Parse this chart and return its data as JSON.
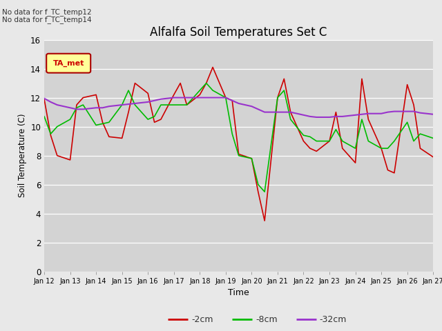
{
  "title": "Alfalfa Soil Temperatures Set C",
  "xlabel": "Time",
  "ylabel": "Soil Temperature (C)",
  "ylim": [
    0,
    16
  ],
  "yticks": [
    0,
    2,
    4,
    6,
    8,
    10,
    12,
    14,
    16
  ],
  "xtick_labels": [
    "Jan 12",
    "Jan 13",
    "Jan 14",
    "Jan 15",
    "Jan 16",
    "Jan 17",
    "Jan 18",
    "Jan 19",
    "Jan 20",
    "Jan 21",
    "Jan 22",
    "Jan 23",
    "Jan 24",
    "Jan 25",
    "Jan 26",
    "Jan 27"
  ],
  "annotations": [
    "No data for f_TC_temp12",
    "No data for f_TC_temp14"
  ],
  "legend_label_box": "TA_met",
  "fig_facecolor": "#e8e8e8",
  "ax_facecolor": "#d3d3d3",
  "series": {
    "red_2cm": {
      "label": "-2cm",
      "color": "#cc0000",
      "x": [
        0,
        0.25,
        0.5,
        1.0,
        1.25,
        1.5,
        2.0,
        2.25,
        2.5,
        3.0,
        3.25,
        3.5,
        4.0,
        4.25,
        4.5,
        5.0,
        5.25,
        5.5,
        6.0,
        6.25,
        6.5,
        7.0,
        7.25,
        7.5,
        8.0,
        8.25,
        8.5,
        9.0,
        9.25,
        9.5,
        10.0,
        10.25,
        10.5,
        11.0,
        11.25,
        11.5,
        12.0,
        12.25,
        12.5,
        13.0,
        13.25,
        13.5,
        14.0,
        14.25,
        14.5,
        15.0
      ],
      "y": [
        11.9,
        9.4,
        8.0,
        7.7,
        11.5,
        12.0,
        12.2,
        10.3,
        9.3,
        9.2,
        11.0,
        13.0,
        12.3,
        10.3,
        10.5,
        12.2,
        13.0,
        11.5,
        12.2,
        13.0,
        14.1,
        12.0,
        11.8,
        8.1,
        7.8,
        5.5,
        3.5,
        12.0,
        13.3,
        11.0,
        9.0,
        8.5,
        8.3,
        9.0,
        11.0,
        8.5,
        7.5,
        13.3,
        10.5,
        8.5,
        7.0,
        6.8,
        12.9,
        11.5,
        8.5,
        7.9
      ]
    },
    "green_8cm": {
      "label": "-8cm",
      "color": "#00bb00",
      "x": [
        0,
        0.25,
        0.5,
        1.0,
        1.25,
        1.5,
        2.0,
        2.25,
        2.5,
        3.0,
        3.25,
        3.5,
        4.0,
        4.25,
        4.5,
        5.0,
        5.25,
        5.5,
        6.0,
        6.25,
        6.5,
        7.0,
        7.25,
        7.5,
        8.0,
        8.25,
        8.5,
        9.0,
        9.25,
        9.5,
        10.0,
        10.25,
        10.5,
        11.0,
        11.25,
        11.5,
        12.0,
        12.25,
        12.5,
        13.0,
        13.25,
        13.5,
        14.0,
        14.25,
        14.5,
        15.0
      ],
      "y": [
        10.7,
        9.5,
        10.0,
        10.5,
        11.3,
        11.5,
        10.1,
        10.2,
        10.3,
        11.5,
        12.5,
        11.5,
        10.5,
        10.7,
        11.5,
        11.5,
        11.5,
        11.5,
        12.5,
        13.0,
        12.5,
        12.0,
        9.5,
        8.0,
        7.8,
        6.0,
        5.5,
        12.0,
        12.5,
        10.5,
        9.4,
        9.3,
        9.0,
        9.0,
        9.8,
        9.0,
        8.5,
        10.5,
        9.0,
        8.5,
        8.5,
        9.0,
        10.3,
        9.0,
        9.5,
        9.2
      ]
    },
    "purple_32cm": {
      "label": "-32cm",
      "color": "#9933cc",
      "x": [
        0,
        0.25,
        0.5,
        1.0,
        1.25,
        1.5,
        2.0,
        2.25,
        2.5,
        3.0,
        3.25,
        3.5,
        4.0,
        4.25,
        4.5,
        5.0,
        5.25,
        5.5,
        6.0,
        6.25,
        6.5,
        7.0,
        7.25,
        7.5,
        8.0,
        8.25,
        8.5,
        9.0,
        9.25,
        9.5,
        10.0,
        10.25,
        10.5,
        11.0,
        11.25,
        11.5,
        12.0,
        12.25,
        12.5,
        13.0,
        13.25,
        13.5,
        14.0,
        14.25,
        14.5,
        15.0
      ],
      "y": [
        11.95,
        11.7,
        11.5,
        11.3,
        11.2,
        11.2,
        11.3,
        11.3,
        11.4,
        11.5,
        11.55,
        11.6,
        11.7,
        11.8,
        11.9,
        12.0,
        12.0,
        12.0,
        12.0,
        12.0,
        12.0,
        12.0,
        11.8,
        11.6,
        11.4,
        11.2,
        11.0,
        11.0,
        11.0,
        11.0,
        10.8,
        10.7,
        10.65,
        10.65,
        10.7,
        10.7,
        10.8,
        10.85,
        10.9,
        10.9,
        11.0,
        11.05,
        11.05,
        11.05,
        10.95,
        10.85
      ]
    }
  }
}
